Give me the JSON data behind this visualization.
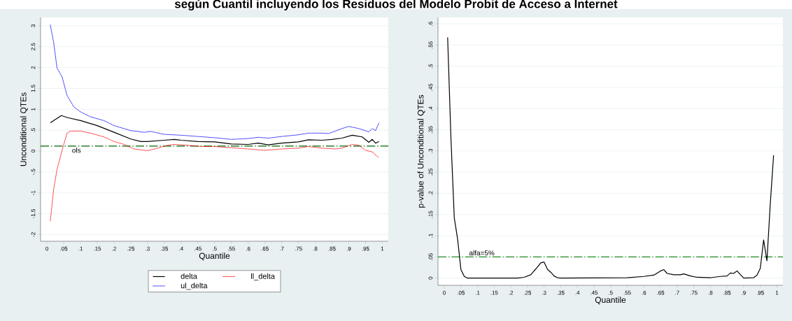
{
  "chart_data": [
    {
      "type": "line",
      "title": "según Cuantil incluyendo los Residuos del Modelo Probit de Acceso a Internet",
      "xlabel": "Quantile",
      "ylabel": "Unconditional QTEs",
      "xlim": [
        -0.019,
        1.018
      ],
      "ylim": [
        -2.16,
        3.2
      ],
      "xticks": [
        0,
        {
          "value": 0.05,
          "label": ".05"
        },
        {
          "value": 0.1,
          "label": ".1"
        },
        {
          "value": 0.15,
          "label": ".15"
        },
        {
          "value": 0.2,
          "label": ".2"
        },
        {
          "value": 0.25,
          "label": ".25"
        },
        {
          "value": 0.3,
          "label": ".3"
        },
        {
          "value": 0.35,
          "label": ".35"
        },
        {
          "value": 0.4,
          "label": ".4"
        },
        {
          "value": 0.45,
          "label": ".45"
        },
        {
          "value": 0.5,
          "label": ".5"
        },
        {
          "value": 0.55,
          "label": ".55"
        },
        {
          "value": 0.6,
          "label": ".6"
        },
        {
          "value": 0.65,
          "label": ".65"
        },
        {
          "value": 0.7,
          "label": ".7"
        },
        {
          "value": 0.75,
          "label": ".75"
        },
        {
          "value": 0.8,
          "label": ".8"
        },
        {
          "value": 0.85,
          "label": ".85"
        },
        {
          "value": 0.9,
          "label": ".9"
        },
        {
          "value": 0.95,
          "label": ".95"
        },
        1
      ],
      "yticks": [
        -2,
        {
          "value": -1.5,
          "label": "-1.5"
        },
        -1,
        {
          "value": -0.5,
          "label": "-.5"
        },
        0,
        {
          "value": 0.5,
          "label": ".5"
        },
        1,
        {
          "value": 1.5,
          "label": "1.5"
        },
        2,
        {
          "value": 2.5,
          "label": "2.5"
        },
        3
      ],
      "grid": "y",
      "legend": "bottom",
      "marker": "none",
      "ref_lines": [
        {
          "axis": "y",
          "value": 0.12,
          "label": "ols",
          "color": "#006400",
          "line_style": "dashdot"
        }
      ],
      "series": [
        {
          "name": "delta",
          "color": "#000000",
          "line_style": "solid",
          "x": [
            0.01,
            0.043,
            0.062,
            0.1,
            0.15,
            0.2,
            0.25,
            0.28,
            0.3,
            0.35,
            0.38,
            0.4,
            0.45,
            0.5,
            0.55,
            0.6,
            0.63,
            0.66,
            0.7,
            0.75,
            0.78,
            0.82,
            0.85,
            0.88,
            0.91,
            0.94,
            0.96,
            0.97,
            0.98,
            0.99
          ],
          "values": [
            0.68,
            0.85,
            0.8,
            0.73,
            0.61,
            0.45,
            0.29,
            0.23,
            0.23,
            0.26,
            0.28,
            0.26,
            0.23,
            0.22,
            0.17,
            0.16,
            0.19,
            0.15,
            0.19,
            0.22,
            0.27,
            0.26,
            0.28,
            0.31,
            0.38,
            0.34,
            0.21,
            0.28,
            0.19,
            0.23
          ]
        },
        {
          "name": "ll_delta",
          "color": "#ff0000",
          "line_style": "dotted",
          "x": [
            0.01,
            0.02,
            0.03,
            0.04,
            0.05,
            0.06,
            0.07,
            0.1,
            0.13,
            0.17,
            0.2,
            0.23,
            0.26,
            0.3,
            0.33,
            0.36,
            0.38,
            0.42,
            0.46,
            0.5,
            0.55,
            0.6,
            0.65,
            0.7,
            0.75,
            0.78,
            0.82,
            0.86,
            0.88,
            0.91,
            0.93,
            0.95,
            0.97,
            0.99
          ],
          "values": [
            -1.67,
            -0.92,
            -0.44,
            -0.14,
            0.16,
            0.43,
            0.48,
            0.48,
            0.43,
            0.34,
            0.23,
            0.16,
            0.05,
            0.01,
            0.07,
            0.14,
            0.16,
            0.14,
            0.11,
            0.11,
            0.08,
            0.05,
            0.02,
            0.05,
            0.07,
            0.11,
            0.07,
            0.05,
            0.07,
            0.16,
            0.14,
            0.02,
            -0.02,
            -0.16
          ]
        },
        {
          "name": "ul_delta",
          "color": "#0000ff",
          "line_style": "dotted",
          "x": [
            0.01,
            0.02,
            0.03,
            0.045,
            0.06,
            0.08,
            0.1,
            0.13,
            0.17,
            0.2,
            0.25,
            0.29,
            0.31,
            0.35,
            0.4,
            0.45,
            0.5,
            0.55,
            0.6,
            0.63,
            0.66,
            0.7,
            0.75,
            0.78,
            0.82,
            0.84,
            0.88,
            0.9,
            0.93,
            0.96,
            0.97,
            0.98,
            0.99
          ],
          "values": [
            3.02,
            2.6,
            1.99,
            1.78,
            1.33,
            1.06,
            0.94,
            0.82,
            0.73,
            0.61,
            0.49,
            0.45,
            0.47,
            0.4,
            0.38,
            0.35,
            0.32,
            0.28,
            0.3,
            0.33,
            0.31,
            0.35,
            0.39,
            0.43,
            0.43,
            0.42,
            0.54,
            0.59,
            0.54,
            0.46,
            0.54,
            0.49,
            0.67
          ]
        }
      ]
    },
    {
      "type": "line",
      "xlabel": "Quantile",
      "ylabel": "p-value of Unconditional QTEs",
      "xlim": [
        -0.019,
        1.018
      ],
      "ylim": [
        -0.017,
        0.615
      ],
      "xticks": [
        0,
        {
          "value": 0.05,
          "label": ".05"
        },
        {
          "value": 0.1,
          "label": ".1"
        },
        {
          "value": 0.15,
          "label": ".15"
        },
        {
          "value": 0.2,
          "label": ".2"
        },
        {
          "value": 0.25,
          "label": ".25"
        },
        {
          "value": 0.3,
          "label": ".3"
        },
        {
          "value": 0.35,
          "label": ".35"
        },
        {
          "value": 0.4,
          "label": ".4"
        },
        {
          "value": 0.45,
          "label": ".45"
        },
        {
          "value": 0.5,
          "label": ".5"
        },
        {
          "value": 0.55,
          "label": ".55"
        },
        {
          "value": 0.6,
          "label": ".6"
        },
        {
          "value": 0.65,
          "label": ".65"
        },
        {
          "value": 0.7,
          "label": ".7"
        },
        {
          "value": 0.75,
          "label": ".75"
        },
        {
          "value": 0.8,
          "label": ".8"
        },
        {
          "value": 0.85,
          "label": ".85"
        },
        {
          "value": 0.9,
          "label": ".9"
        },
        {
          "value": 0.95,
          "label": ".95"
        },
        1
      ],
      "yticks": [
        0,
        {
          "value": 0.05,
          "label": ".05"
        },
        {
          "value": 0.1,
          "label": ".1"
        },
        {
          "value": 0.15,
          "label": ".15"
        },
        {
          "value": 0.2,
          "label": ".2"
        },
        {
          "value": 0.25,
          "label": ".25"
        },
        {
          "value": 0.3,
          "label": ".3"
        },
        {
          "value": 0.35,
          "label": ".35"
        },
        {
          "value": 0.4,
          "label": ".4"
        },
        {
          "value": 0.45,
          "label": ".45"
        },
        {
          "value": 0.5,
          "label": ".5"
        },
        {
          "value": 0.55,
          "label": ".55"
        },
        {
          "value": 0.6,
          "label": ".6"
        }
      ],
      "grid": "y",
      "marker": "none",
      "ref_lines": [
        {
          "axis": "y",
          "value": 0.05,
          "label": "alfa=5%",
          "color": "#228b22",
          "line_style": "dashdot"
        }
      ],
      "series": [
        {
          "color": "#000000",
          "line_style": "solid",
          "x": [
            0.01,
            0.02,
            0.03,
            0.04,
            0.05,
            0.06,
            0.07,
            0.22,
            0.24,
            0.26,
            0.28,
            0.29,
            0.3,
            0.31,
            0.32,
            0.33,
            0.34,
            0.35,
            0.55,
            0.6,
            0.63,
            0.65,
            0.66,
            0.67,
            0.69,
            0.71,
            0.72,
            0.74,
            0.76,
            0.8,
            0.83,
            0.85,
            0.86,
            0.87,
            0.88,
            0.9,
            0.93,
            0.94,
            0.95,
            0.96,
            0.97,
            0.98,
            0.99
          ],
          "values": [
            0.568,
            0.329,
            0.142,
            0.092,
            0.02,
            0.004,
            0,
            0,
            0.002,
            0.008,
            0.026,
            0.036,
            0.038,
            0.021,
            0.014,
            0.005,
            0.001,
            0,
            0.001,
            0.004,
            0.007,
            0.017,
            0.02,
            0.011,
            0.008,
            0.008,
            0.01,
            0.005,
            0.002,
            0.001,
            0.004,
            0.005,
            0.012,
            0.011,
            0.017,
            0,
            0.001,
            0.007,
            0.023,
            0.09,
            0.041,
            0.175,
            0.29
          ]
        }
      ]
    }
  ]
}
